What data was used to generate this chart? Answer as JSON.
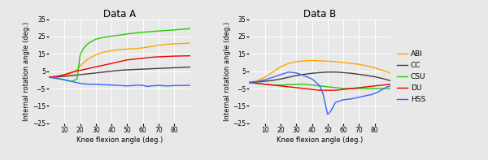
{
  "title_A": "Data A",
  "title_B": "Data B",
  "xlabel": "Knee flexion angle (deg.)",
  "ylabel": "Internal rotation angle (deg.)",
  "xlim": [
    0,
    90
  ],
  "ylim": [
    -25,
    35
  ],
  "yticks": [
    -25,
    -15,
    -5,
    5,
    15,
    25,
    35
  ],
  "xticks": [
    10,
    20,
    30,
    40,
    50,
    60,
    70,
    80
  ],
  "colors": {
    "ABI": "#FFA500",
    "CC": "#404040",
    "CSU": "#22CC00",
    "DU": "#EE0000",
    "HSS": "#3366FF"
  },
  "linewidth": 1.0,
  "data_A": {
    "ABI": {
      "x": [
        0,
        2,
        5,
        8,
        10,
        13,
        15,
        18,
        20,
        23,
        25,
        28,
        30,
        35,
        40,
        45,
        50,
        55,
        60,
        65,
        70,
        75,
        80,
        85,
        90
      ],
      "y": [
        1.5,
        1.6,
        1.8,
        2.2,
        2.5,
        3.2,
        4.0,
        6.0,
        8.0,
        10.5,
        12.0,
        13.5,
        14.5,
        16.0,
        16.8,
        17.5,
        17.8,
        18.0,
        18.5,
        19.2,
        20.0,
        20.5,
        20.8,
        21.0,
        21.2
      ]
    },
    "CC": {
      "x": [
        0,
        5,
        10,
        15,
        20,
        25,
        30,
        35,
        40,
        45,
        50,
        55,
        60,
        65,
        70,
        75,
        80,
        85,
        90
      ],
      "y": [
        1.5,
        1.8,
        2.0,
        2.5,
        3.0,
        3.5,
        4.0,
        4.5,
        5.0,
        5.5,
        5.8,
        6.0,
        6.2,
        6.4,
        6.6,
        6.8,
        7.0,
        7.2,
        7.4
      ]
    },
    "CSU": {
      "x": [
        0,
        5,
        8,
        10,
        12,
        15,
        18,
        20,
        22,
        25,
        30,
        35,
        40,
        45,
        50,
        55,
        60,
        65,
        70,
        75,
        80,
        85,
        90
      ],
      "y": [
        1.5,
        1.2,
        0.5,
        0.0,
        -0.5,
        -0.8,
        0.5,
        14.5,
        18.0,
        21.0,
        23.5,
        24.5,
        25.2,
        25.8,
        26.5,
        27.0,
        27.5,
        27.8,
        28.2,
        28.5,
        28.8,
        29.2,
        29.5
      ]
    },
    "DU": {
      "x": [
        0,
        5,
        10,
        15,
        20,
        25,
        30,
        35,
        40,
        45,
        50,
        55,
        60,
        65,
        70,
        75,
        80,
        85,
        90
      ],
      "y": [
        1.5,
        2.0,
        3.0,
        4.5,
        5.5,
        6.5,
        7.5,
        8.5,
        9.5,
        10.5,
        11.5,
        12.0,
        12.5,
        13.0,
        13.3,
        13.5,
        13.7,
        13.8,
        13.9
      ]
    },
    "HSS": {
      "x": [
        0,
        5,
        10,
        15,
        20,
        25,
        30,
        35,
        40,
        45,
        50,
        55,
        57,
        60,
        63,
        65,
        70,
        75,
        80,
        85,
        90
      ],
      "y": [
        1.5,
        0.8,
        0.0,
        -1.0,
        -2.0,
        -2.5,
        -2.5,
        -2.8,
        -3.0,
        -3.2,
        -3.5,
        -3.2,
        -3.0,
        -3.2,
        -3.8,
        -3.5,
        -3.2,
        -3.5,
        -3.3,
        -3.2,
        -3.2
      ]
    }
  },
  "data_B": {
    "ABI": {
      "x": [
        0,
        5,
        10,
        15,
        20,
        25,
        30,
        35,
        40,
        45,
        50,
        55,
        60,
        65,
        70,
        75,
        80,
        85,
        90
      ],
      "y": [
        -1.5,
        -0.5,
        1.5,
        4.5,
        7.5,
        9.5,
        10.5,
        11.0,
        11.2,
        11.0,
        10.8,
        10.5,
        10.0,
        9.5,
        9.0,
        8.0,
        7.0,
        5.5,
        4.0
      ]
    },
    "CC": {
      "x": [
        0,
        5,
        10,
        15,
        20,
        25,
        30,
        35,
        40,
        45,
        50,
        55,
        60,
        65,
        70,
        75,
        80,
        85,
        90
      ],
      "y": [
        -1.5,
        -1.2,
        -0.8,
        -0.3,
        0.5,
        1.5,
        2.5,
        3.2,
        3.8,
        4.2,
        4.5,
        4.5,
        4.2,
        3.8,
        3.2,
        2.5,
        1.8,
        0.8,
        -0.5
      ]
    },
    "CSU": {
      "x": [
        0,
        5,
        10,
        15,
        20,
        25,
        30,
        35,
        40,
        45,
        50,
        55,
        60,
        65,
        70,
        75,
        80,
        85,
        90
      ],
      "y": [
        -1.5,
        -2.0,
        -2.5,
        -3.0,
        -3.0,
        -2.8,
        -2.5,
        -2.5,
        -3.0,
        -3.5,
        -4.0,
        -4.5,
        -5.0,
        -5.0,
        -5.0,
        -5.0,
        -5.0,
        -5.0,
        -5.0
      ]
    },
    "DU": {
      "x": [
        0,
        5,
        10,
        15,
        20,
        25,
        30,
        35,
        40,
        45,
        50,
        55,
        60,
        65,
        70,
        75,
        80,
        85,
        90
      ],
      "y": [
        -1.5,
        -2.0,
        -2.5,
        -3.0,
        -3.5,
        -4.0,
        -4.5,
        -5.0,
        -5.5,
        -6.0,
        -6.0,
        -6.0,
        -5.5,
        -5.0,
        -4.5,
        -4.0,
        -3.5,
        -3.0,
        -2.5
      ]
    },
    "HSS": {
      "x": [
        0,
        5,
        10,
        15,
        20,
        25,
        30,
        35,
        40,
        42,
        45,
        47,
        50,
        52,
        55,
        60,
        65,
        70,
        75,
        78,
        82,
        85,
        88,
        90
      ],
      "y": [
        -1.5,
        -1.0,
        0.0,
        1.5,
        3.0,
        4.5,
        4.0,
        2.5,
        0.5,
        -1.0,
        -3.5,
        -8.0,
        -20.0,
        -18.0,
        -13.0,
        -11.5,
        -11.0,
        -10.0,
        -9.0,
        -8.5,
        -7.0,
        -5.5,
        -4.0,
        -3.5
      ]
    }
  },
  "legend_entries": [
    "ABI",
    "CC",
    "CSU",
    "DU",
    "HSS"
  ],
  "bg_color": "#e8e8e8",
  "plot_bg": "#e8e8e8",
  "grid_color": "#ffffff"
}
